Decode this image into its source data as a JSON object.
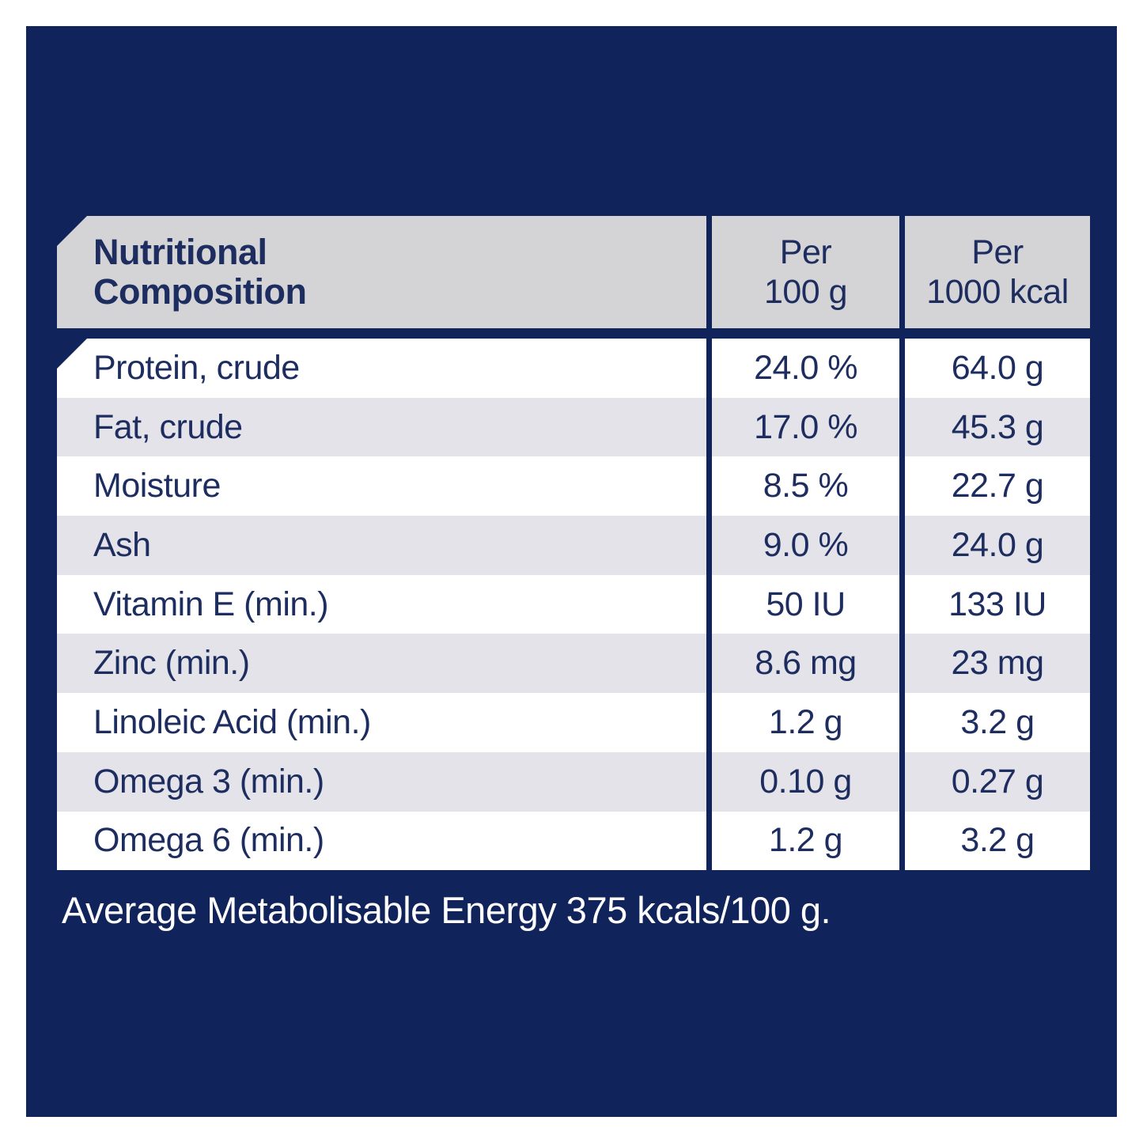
{
  "colors": {
    "page-bg": "#ffffff",
    "navy": "#10235a",
    "header-gray": "#d4d4d6",
    "row-white": "#ffffff",
    "row-alt": "#e3e3e9",
    "text-navy": "#1e2d5f",
    "footer-text": "#ffffff"
  },
  "table": {
    "header": {
      "title_line1": "Nutritional",
      "title_line2": "Composition",
      "per_100g_line1": "Per",
      "per_100g_line2": "100 g",
      "per_1000kcal_line1": "Per",
      "per_1000kcal_line2": "1000 kcal"
    },
    "rows": [
      {
        "label": "Protein, crude",
        "per_100g": "24.0 %",
        "per_1000kcal": "64.0 g"
      },
      {
        "label": "Fat, crude",
        "per_100g": "17.0 %",
        "per_1000kcal": "45.3 g"
      },
      {
        "label": "Moisture",
        "per_100g": "8.5 %",
        "per_1000kcal": "22.7 g"
      },
      {
        "label": "Ash",
        "per_100g": "9.0 %",
        "per_1000kcal": "24.0 g"
      },
      {
        "label": "Vitamin E (min.)",
        "per_100g": "50 IU",
        "per_1000kcal": "133 IU"
      },
      {
        "label": "Zinc (min.)",
        "per_100g": "8.6 mg",
        "per_1000kcal": "23 mg"
      },
      {
        "label": "Linoleic Acid (min.)",
        "per_100g": "1.2 g",
        "per_1000kcal": "3.2 g"
      },
      {
        "label": "Omega 3 (min.)",
        "per_100g": "0.10 g",
        "per_1000kcal": "0.27 g"
      },
      {
        "label": "Omega 6 (min.)",
        "per_100g": "1.2 g",
        "per_1000kcal": "3.2 g"
      }
    ]
  },
  "footer": {
    "text": "Average Metabolisable Energy 375 kcals/100 g."
  }
}
